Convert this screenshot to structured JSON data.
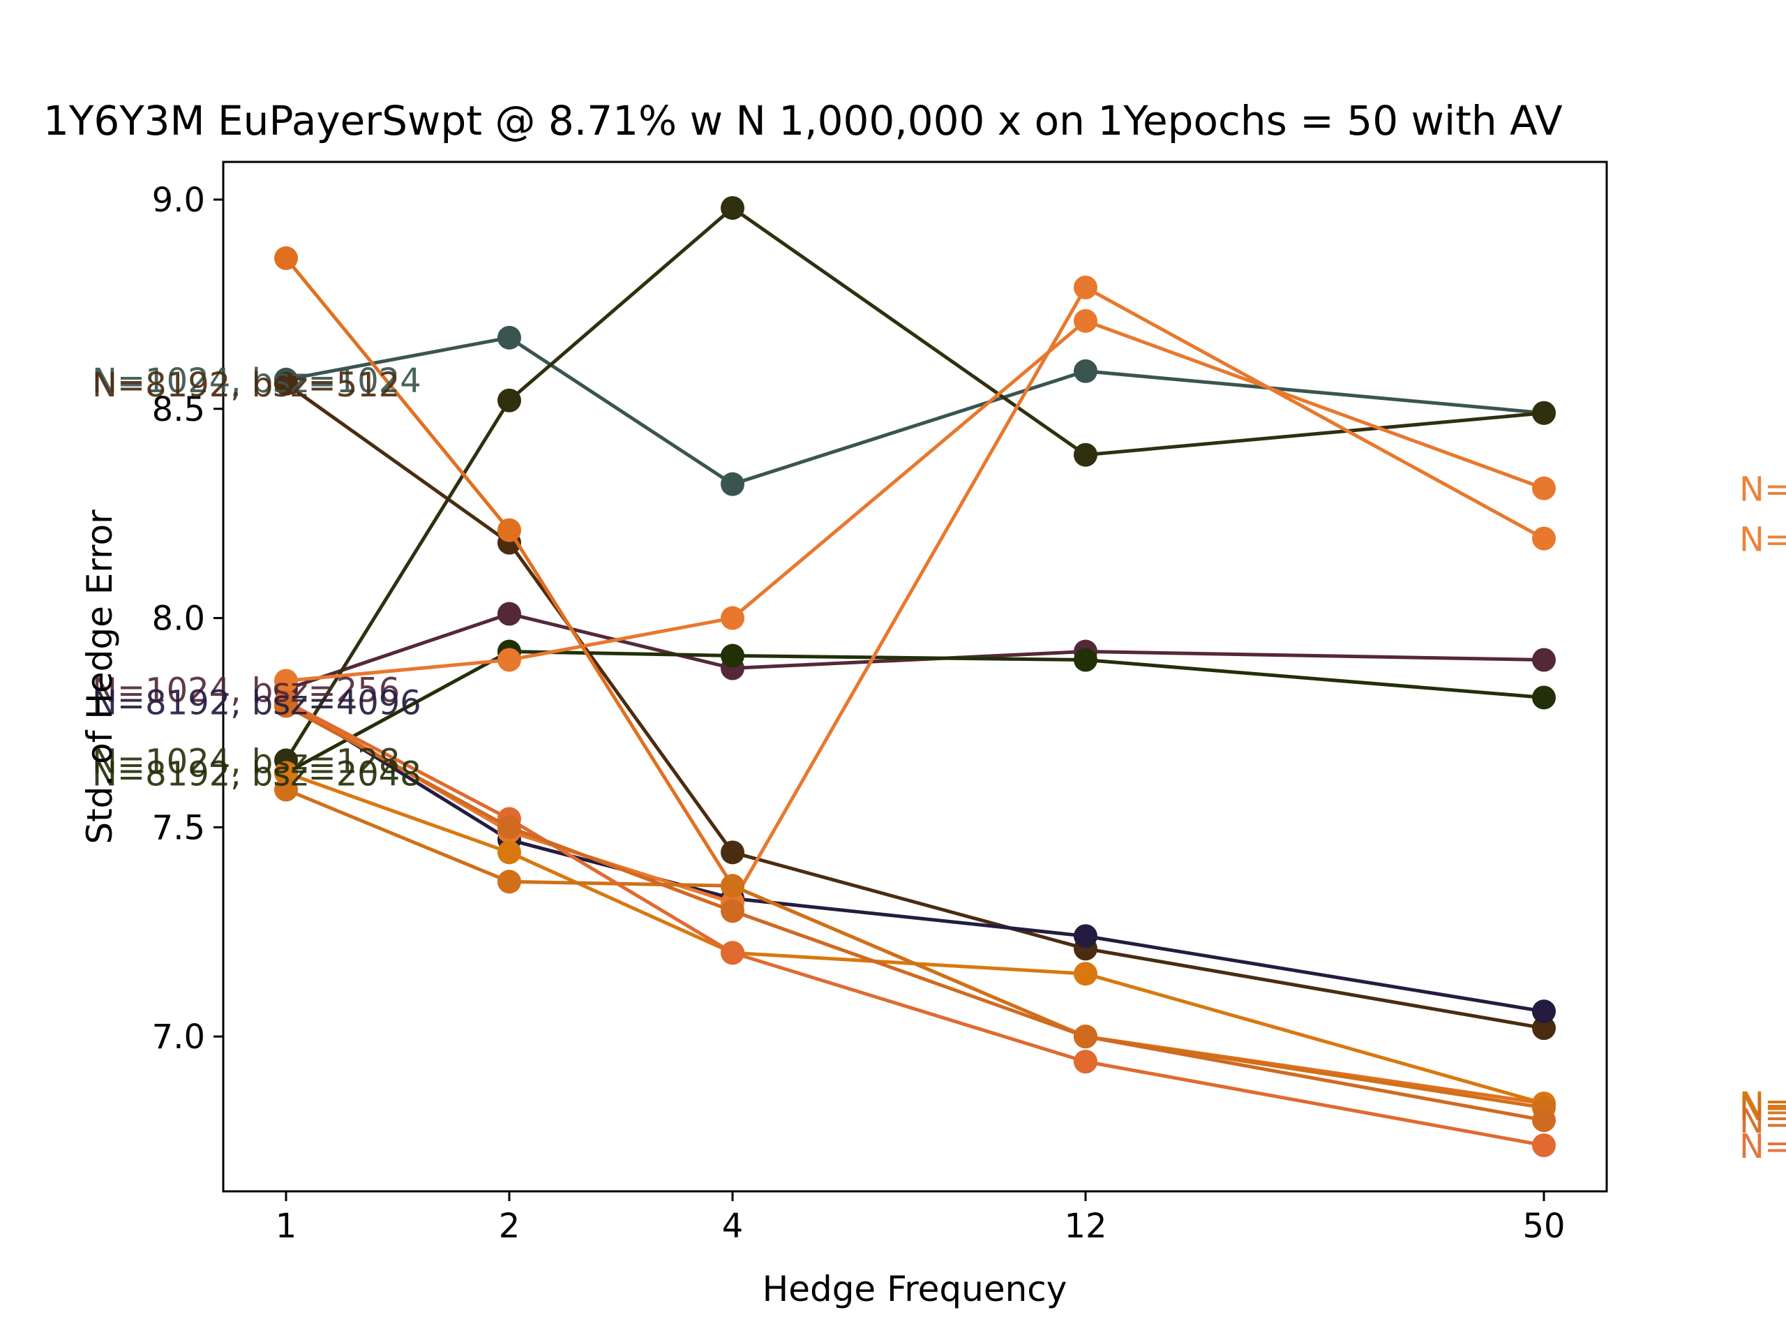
{
  "chart_data": {
    "type": "line",
    "title": "1Y6Y3M EuPayerSwpt @ 8.71% w N 1,000,000 x on 1Yepochs = 50 with AV",
    "xlabel": "Hedge Frequency",
    "ylabel": "Std. of Hedge Error",
    "x": [
      "1",
      "2",
      "4",
      "12",
      "50"
    ],
    "ylim": [
      6.63,
      9.09
    ],
    "yticks": [
      "7.0",
      "7.5",
      "8.0",
      "8.5",
      "9.0"
    ],
    "grid": false,
    "series": [
      {
        "label": "N=1024, bsz=1024",
        "color": "#3a5550",
        "values": [
          8.57,
          8.67,
          8.32,
          8.59,
          8.49
        ],
        "label_side": "left"
      },
      {
        "label": "N=8192, bsz=512",
        "color": "#4a2c10",
        "values": [
          8.56,
          8.18,
          7.44,
          7.21,
          7.02
        ],
        "label_side": "left"
      },
      {
        "label": "N=1024, bsz=256",
        "color": "#552838",
        "values": [
          7.83,
          8.01,
          7.88,
          7.92,
          7.9
        ],
        "label_side": "left"
      },
      {
        "label": "N=8192, bsz=4096",
        "color": "#241c40",
        "values": [
          7.8,
          7.47,
          7.33,
          7.24,
          7.06
        ],
        "label_side": "left"
      },
      {
        "label": "N=1024, bsz=128",
        "color": "#30300f",
        "values": [
          7.66,
          8.52,
          8.98,
          8.39,
          8.49
        ],
        "label_side": "left"
      },
      {
        "label": "N=8192, bsz=2048",
        "color": "#223008",
        "values": [
          7.63,
          7.92,
          7.91,
          7.9,
          7.81
        ],
        "label_side": "left"
      },
      {
        "label": "N=",
        "color": "#e8782d",
        "values": [
          7.85,
          7.9,
          8.0,
          8.71,
          8.31
        ],
        "label_side": "right"
      },
      {
        "label": "N=",
        "color": "#e8782d",
        "values": [
          7.8,
          7.49,
          7.32,
          8.79,
          8.19
        ],
        "label_side": "right"
      },
      {
        "label": "N=",
        "color": "#e07020",
        "values": [
          8.86,
          8.21,
          7.36,
          7.0,
          6.84
        ],
        "label_side": "right"
      },
      {
        "label": "N=",
        "color": "#d9780f",
        "values": [
          7.63,
          7.44,
          7.2,
          7.15,
          6.84
        ],
        "label_side": "right"
      },
      {
        "label": "N=",
        "color": "#d07018",
        "values": [
          7.59,
          7.37,
          7.36,
          7.0,
          6.83
        ],
        "label_side": "right"
      },
      {
        "label": "N=",
        "color": "#e06a30",
        "values": [
          7.8,
          7.52,
          7.2,
          6.94,
          6.74
        ],
        "label_side": "right"
      },
      {
        "label": "N=",
        "color": "#d06a20",
        "values": [
          7.79,
          7.5,
          7.3,
          7.0,
          6.8
        ],
        "label_side": "right"
      }
    ]
  }
}
